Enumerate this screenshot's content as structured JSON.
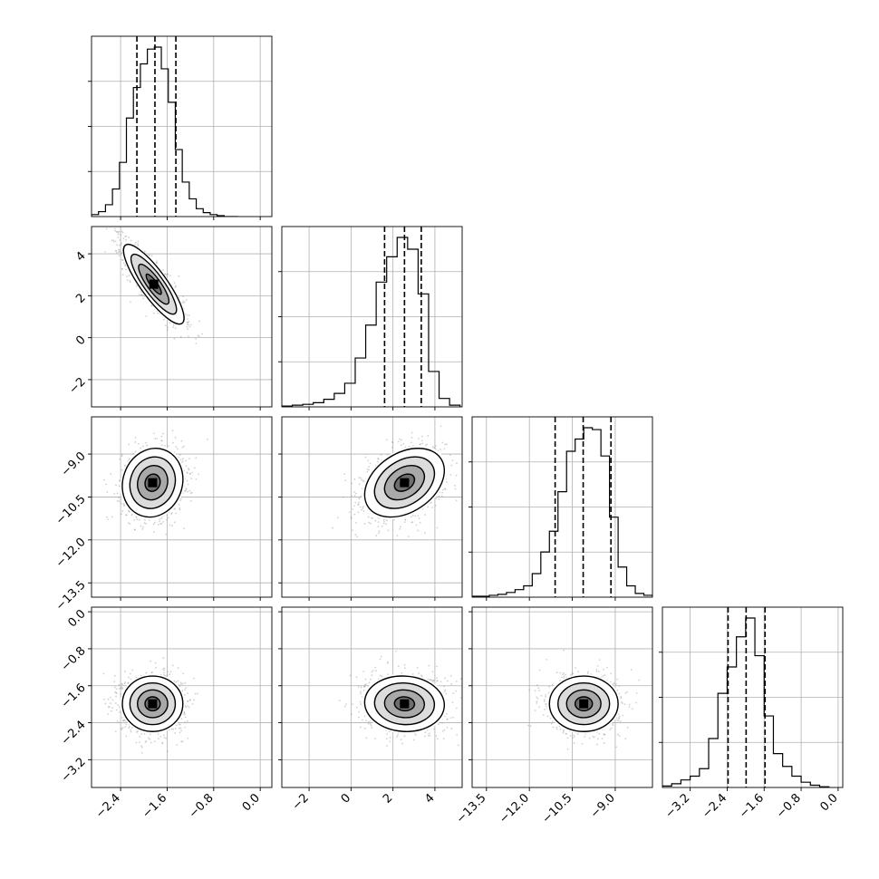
{
  "chart_data": {
    "type": "corner",
    "parameters": 4,
    "grid": true,
    "density_colors": [
      "#ffffff",
      "#dcdcdc",
      "#a9a9a9",
      "#6e6e6e",
      "#3a3a3a",
      "#000000"
    ],
    "params": [
      {
        "index": 0,
        "range": [
          -2.9,
          0.2
        ],
        "ticks": [
          -2.4,
          -1.6,
          -0.8,
          0.0
        ],
        "tick_labels": [
          "−2.4",
          "−1.6",
          "−0.8",
          "0.0"
        ],
        "hist": {
          "bins": [
            -2.9,
            -2.78,
            -2.66,
            -2.54,
            -2.42,
            -2.3,
            -2.18,
            -2.06,
            -1.94,
            -1.82,
            -1.7,
            -1.58,
            -1.46,
            -1.34,
            -1.22,
            -1.1,
            -0.98,
            -0.86,
            -0.74,
            -0.62,
            -0.5,
            -0.38
          ],
          "counts": [
            2,
            5,
            12,
            28,
            55,
            100,
            131,
            155,
            170,
            172,
            150,
            116,
            68,
            35,
            18,
            8,
            4,
            2,
            1,
            0,
            0
          ]
        },
        "quantiles": [
          -2.12,
          -1.81,
          -1.45
        ]
      },
      {
        "index": 1,
        "range": [
          -3.3,
          5.3
        ],
        "ticks": [
          -2,
          0,
          2,
          4
        ],
        "tick_labels": [
          "−2",
          "0",
          "2",
          "4"
        ],
        "hist": {
          "bins": [
            -3.3,
            -2.8,
            -2.3,
            -1.8,
            -1.3,
            -0.8,
            -0.3,
            0.2,
            0.7,
            1.2,
            1.7,
            2.2,
            2.7,
            3.2,
            3.7,
            4.2,
            4.7,
            5.2
          ],
          "counts": [
            1,
            2,
            3,
            5,
            9,
            16,
            28,
            58,
            97,
            148,
            178,
            201,
            187,
            134,
            42,
            10,
            2
          ]
        },
        "quantiles": [
          1.6,
          2.55,
          3.35
        ]
      },
      {
        "index": 2,
        "range": [
          -14.0,
          -7.7
        ],
        "ticks": [
          -13.5,
          -12.0,
          -10.5,
          -9.0
        ],
        "tick_labels": [
          "−13.5",
          "−12.0",
          "−10.5",
          "−9.0"
        ],
        "hist": {
          "bins": [
            -14.0,
            -13.7,
            -13.4,
            -13.1,
            -12.8,
            -12.5,
            -12.2,
            -11.9,
            -11.6,
            -11.3,
            -11.0,
            -10.7,
            -10.4,
            -10.1,
            -9.8,
            -9.5,
            -9.2,
            -8.9,
            -8.6,
            -8.3,
            -8.0,
            -7.7
          ],
          "counts": [
            1,
            1,
            2,
            3,
            5,
            8,
            12,
            25,
            48,
            70,
            112,
            155,
            168,
            180,
            178,
            150,
            85,
            32,
            12,
            4,
            2
          ]
        },
        "quantiles": [
          -11.1,
          -10.12,
          -9.15
        ]
      },
      {
        "index": 3,
        "range": [
          -3.8,
          0.1
        ],
        "ticks": [
          -3.2,
          -2.4,
          -1.6,
          -0.8,
          0.0
        ],
        "tick_labels": [
          "−3.2",
          "−2.4",
          "−1.6",
          "−0.8",
          "0.0"
        ],
        "y_ticks": [
          0.0,
          -0.8,
          -1.6,
          -2.4,
          -3.2
        ],
        "y_tick_labels": [
          "0.0",
          "−0.8",
          "−1.6",
          "−2.4",
          "−3.2"
        ],
        "hist": {
          "bins": [
            -3.8,
            -3.6,
            -3.4,
            -3.2,
            -3.0,
            -2.8,
            -2.6,
            -2.4,
            -2.2,
            -2.0,
            -1.8,
            -1.6,
            -1.4,
            -1.2,
            -1.0,
            -0.8,
            -0.6,
            -0.4,
            -0.2
          ],
          "counts": [
            2,
            5,
            10,
            15,
            25,
            65,
            125,
            160,
            200,
            225,
            175,
            95,
            45,
            28,
            15,
            7,
            3,
            1
          ]
        },
        "quantiles": [
          -2.38,
          -1.99,
          -1.58
        ]
      }
    ],
    "pairs": [
      {
        "row": 1,
        "col": 0,
        "mean": [
          -1.83,
          2.55
        ],
        "sd": [
          0.26,
          0.95
        ],
        "corr": -0.85
      },
      {
        "row": 2,
        "col": 0,
        "mean": [
          -1.85,
          -10.0
        ],
        "sd": [
          0.26,
          0.6
        ],
        "corr": 0.1
      },
      {
        "row": 2,
        "col": 1,
        "mean": [
          2.55,
          -10.0
        ],
        "sd": [
          0.95,
          0.6
        ],
        "corr": 0.35
      },
      {
        "row": 3,
        "col": 0,
        "mean": [
          -1.85,
          -1.99
        ],
        "sd": [
          0.26,
          0.3
        ],
        "corr": 0.0
      },
      {
        "row": 3,
        "col": 1,
        "mean": [
          2.55,
          -1.99
        ],
        "sd": [
          0.95,
          0.3
        ],
        "corr": -0.05
      },
      {
        "row": 3,
        "col": 2,
        "mean": [
          -10.1,
          -1.99
        ],
        "sd": [
          0.6,
          0.3
        ],
        "corr": 0.0
      }
    ],
    "contour_levels_sigma": [
      0.5,
      1.0,
      1.5,
      2.0
    ]
  }
}
